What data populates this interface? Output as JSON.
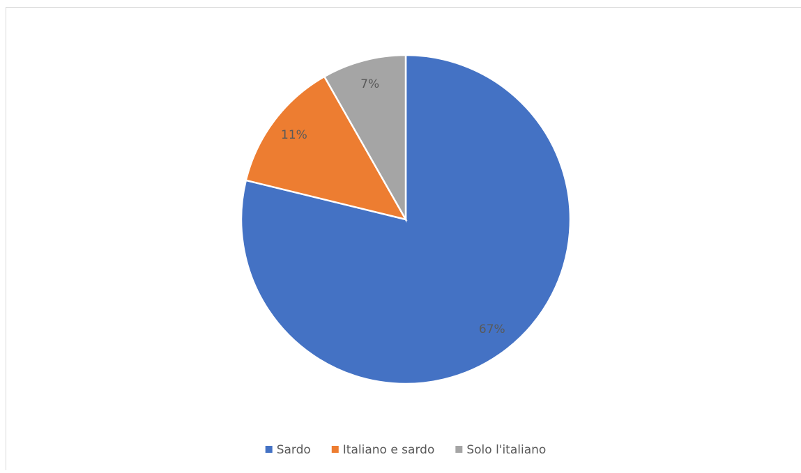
{
  "chart_data": {
    "type": "pie",
    "categories": [
      "Sardo",
      "Italiano e sardo",
      "Solo l'italiano"
    ],
    "values": [
      67,
      11,
      7
    ],
    "value_labels": [
      "67%",
      "11%",
      "7%"
    ],
    "colors": [
      "#4472c4",
      "#ed7d31",
      "#a5a5a5"
    ],
    "legend": "bottom"
  }
}
